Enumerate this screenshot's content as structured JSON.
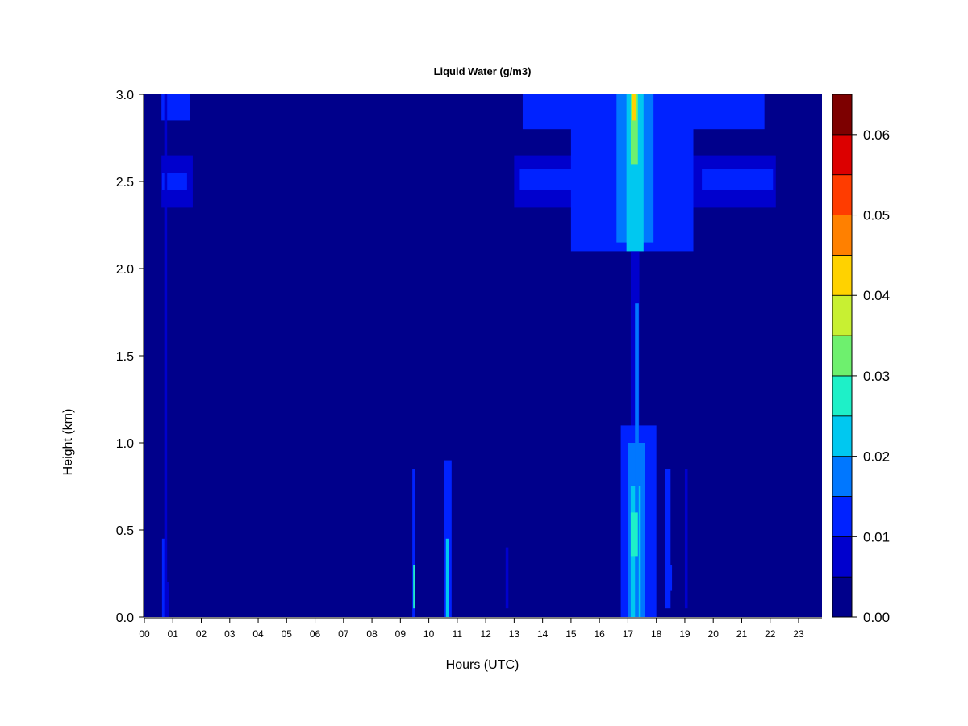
{
  "chart_data": {
    "type": "heatmap",
    "title": "Liquid Water (g/m3)",
    "xlabel": "Hours (UTC)",
    "ylabel": "Height (km)",
    "xlim": [
      0,
      24
    ],
    "ylim": [
      0,
      3
    ],
    "x_ticks": [
      "00",
      "01",
      "02",
      "03",
      "04",
      "05",
      "06",
      "07",
      "08",
      "09",
      "10",
      "11",
      "12",
      "13",
      "14",
      "15",
      "16",
      "17",
      "18",
      "19",
      "20",
      "21",
      "22",
      "23"
    ],
    "y_ticks": [
      "0.0",
      "0.5",
      "1.0",
      "1.5",
      "2.0",
      "2.5",
      "3.0"
    ],
    "colorbar": {
      "levels": [
        0,
        0.005,
        0.01,
        0.015,
        0.02,
        0.025,
        0.03,
        0.035,
        0.04,
        0.045,
        0.05,
        0.055,
        0.06,
        0.065
      ],
      "colors": [
        "#00008B",
        "#0000CD",
        "#0022FF",
        "#0077FF",
        "#00C8F0",
        "#1EF0C8",
        "#6EF06E",
        "#C8F032",
        "#FFD200",
        "#FF8000",
        "#FF3C00",
        "#DC0000",
        "#7D0000"
      ],
      "tick_labels": [
        "0.00",
        "0.01",
        "0.02",
        "0.03",
        "0.04",
        "0.05",
        "0.06"
      ],
      "tick_values": [
        0,
        0.01,
        0.02,
        0.03,
        0.04,
        0.05,
        0.06
      ]
    },
    "features": [
      {
        "x": [
          0.62,
          0.74
        ],
        "y": [
          0.0,
          0.45
        ],
        "value": 0.012
      },
      {
        "x": [
          0.74,
          0.85
        ],
        "y": [
          0.0,
          0.2
        ],
        "value": 0.007
      },
      {
        "x": [
          0.6,
          1.7
        ],
        "y": [
          2.35,
          2.65
        ],
        "value": 0.008
      },
      {
        "x": [
          0.62,
          1.5
        ],
        "y": [
          2.45,
          2.55
        ],
        "value": 0.012
      },
      {
        "x": [
          0.6,
          1.6
        ],
        "y": [
          2.85,
          3.0
        ],
        "value": 0.01
      },
      {
        "x": [
          0.7,
          0.8
        ],
        "y": [
          0.0,
          3.0
        ],
        "value": 0.006
      },
      {
        "x": [
          9.42,
          9.52
        ],
        "y": [
          0.0,
          0.85
        ],
        "value": 0.012
      },
      {
        "x": [
          9.45,
          9.5
        ],
        "y": [
          0.05,
          0.3
        ],
        "value": 0.028
      },
      {
        "x": [
          10.55,
          10.8
        ],
        "y": [
          0.0,
          0.9
        ],
        "value": 0.012
      },
      {
        "x": [
          10.6,
          10.72
        ],
        "y": [
          0.0,
          0.45
        ],
        "value": 0.022
      },
      {
        "x": [
          12.7,
          12.8
        ],
        "y": [
          0.05,
          0.4
        ],
        "value": 0.006
      },
      {
        "x": [
          13.0,
          22.2
        ],
        "y": [
          2.35,
          2.65
        ],
        "value": 0.008
      },
      {
        "x": [
          13.2,
          16.0
        ],
        "y": [
          2.45,
          2.57
        ],
        "value": 0.013
      },
      {
        "x": [
          19.6,
          22.1
        ],
        "y": [
          2.45,
          2.57
        ],
        "value": 0.012
      },
      {
        "x": [
          13.3,
          21.8
        ],
        "y": [
          2.8,
          3.0
        ],
        "value": 0.01
      },
      {
        "x": [
          15.0,
          19.3
        ],
        "y": [
          2.1,
          3.0
        ],
        "value": 0.01
      },
      {
        "x": [
          15.8,
          18.6
        ],
        "y": [
          2.3,
          3.0
        ],
        "value": 0.013
      },
      {
        "x": [
          16.6,
          17.9
        ],
        "y": [
          2.15,
          3.0
        ],
        "value": 0.017
      },
      {
        "x": [
          16.95,
          17.55
        ],
        "y": [
          2.1,
          3.0
        ],
        "value": 0.022
      },
      {
        "x": [
          17.1,
          17.35
        ],
        "y": [
          2.6,
          3.0
        ],
        "value": 0.032
      },
      {
        "x": [
          17.15,
          17.28
        ],
        "y": [
          2.85,
          3.0
        ],
        "value": 0.042
      },
      {
        "x": [
          17.1,
          17.4
        ],
        "y": [
          0.0,
          2.1
        ],
        "value": 0.009
      },
      {
        "x": [
          16.75,
          18.0
        ],
        "y": [
          0.0,
          1.1
        ],
        "value": 0.011
      },
      {
        "x": [
          17.0,
          17.6
        ],
        "y": [
          0.0,
          1.0
        ],
        "value": 0.016
      },
      {
        "x": [
          17.1,
          17.45
        ],
        "y": [
          0.0,
          0.75
        ],
        "value": 0.023
      },
      {
        "x": [
          17.25,
          17.38
        ],
        "y": [
          0.0,
          1.8
        ],
        "value": 0.019
      },
      {
        "x": [
          17.1,
          17.35
        ],
        "y": [
          0.35,
          0.6
        ],
        "value": 0.028
      },
      {
        "x": [
          18.3,
          18.5
        ],
        "y": [
          0.05,
          0.85
        ],
        "value": 0.01
      },
      {
        "x": [
          18.3,
          18.55
        ],
        "y": [
          0.15,
          0.3
        ],
        "value": 0.014
      },
      {
        "x": [
          19.0,
          19.1
        ],
        "y": [
          0.05,
          0.85
        ],
        "value": 0.007
      }
    ]
  }
}
